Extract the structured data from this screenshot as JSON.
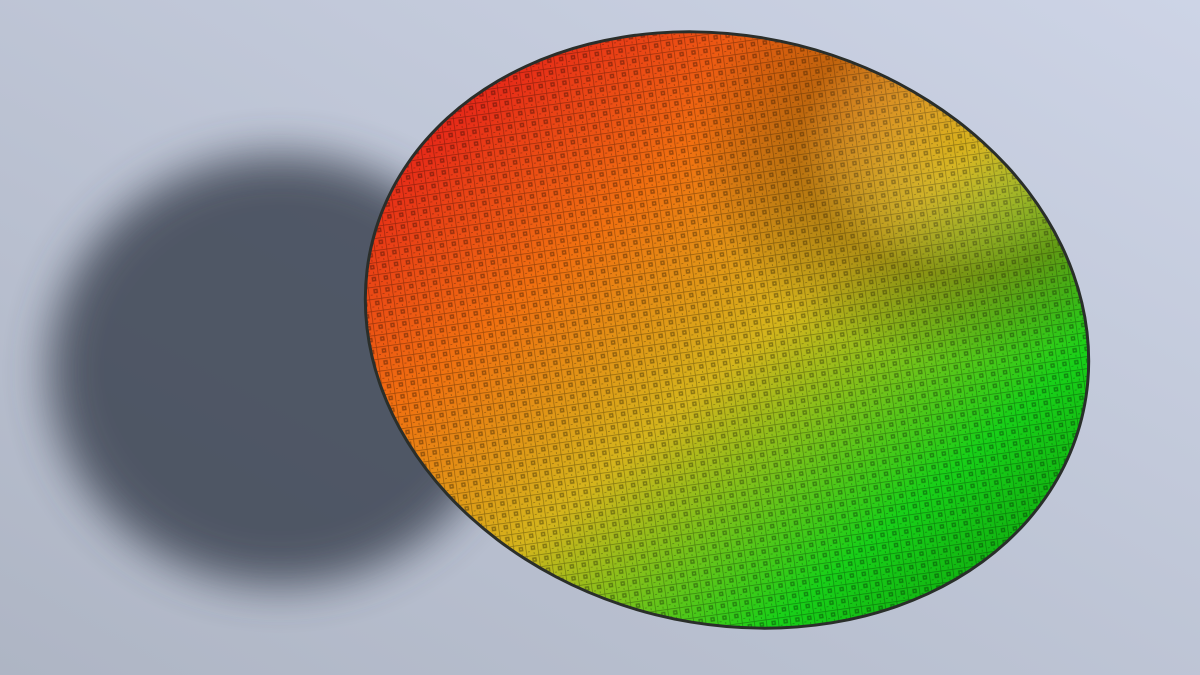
{
  "scene": {
    "subject": "silicon wafer",
    "colors": {
      "background_light": "#cdd4e6",
      "background_dark": "#aeb5c4",
      "shadow": "#3e4552",
      "wafer_red": "#e4181a",
      "wafer_orange": "#f07010",
      "wafer_yellow": "#d4b41c",
      "wafer_green": "#18d018",
      "wafer_edge": "#2a2e2a"
    }
  }
}
